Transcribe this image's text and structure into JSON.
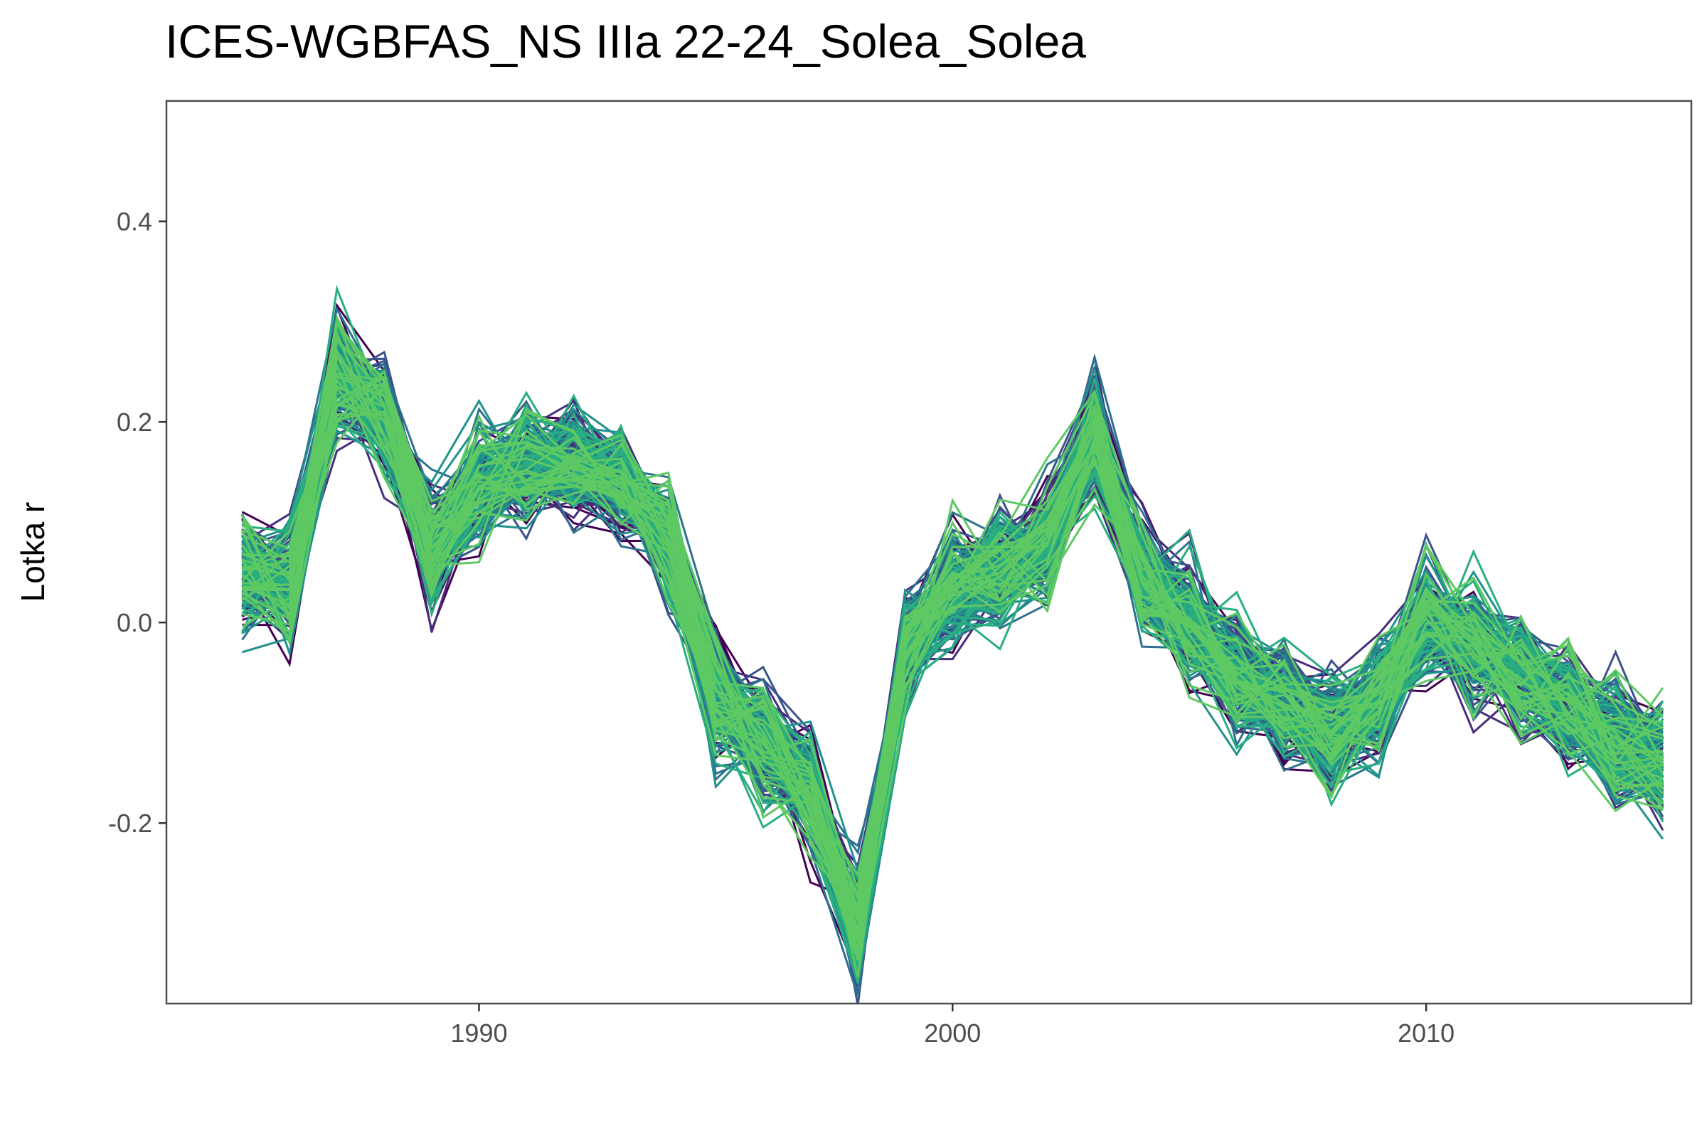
{
  "chart_data": {
    "type": "line",
    "title": "ICES-WGBFAS_NS IIIa 22-24_Solea_Solea",
    "xlabel": "",
    "ylabel": "Lotka r",
    "xlim": [
      1983.4,
      2015.6
    ],
    "ylim": [
      -0.38,
      0.52
    ],
    "x_ticks": [
      1990,
      2000,
      2010
    ],
    "x_tick_labels": [
      "1990",
      "2000",
      "2010"
    ],
    "y_ticks": [
      -0.2,
      0.0,
      0.2,
      0.4
    ],
    "y_tick_labels": [
      "-0.2",
      "0.0",
      "0.2",
      "0.4"
    ],
    "grid": false,
    "legend": "none",
    "palette": [
      "#440154",
      "#472d7b",
      "#3b528b",
      "#2c728e",
      "#21918c",
      "#28ae80",
      "#5ec962"
    ],
    "x": [
      1985,
      1986,
      1987,
      1988,
      1989,
      1990,
      1991,
      1992,
      1993,
      1994,
      1995,
      1996,
      1997,
      1998,
      1999,
      2000,
      2001,
      2002,
      2003,
      2004,
      2005,
      2006,
      2007,
      2008,
      2009,
      2010,
      2011,
      2012,
      2013,
      2014,
      2015
    ],
    "central_trajectory": [
      0.05,
      0.04,
      0.25,
      0.21,
      0.07,
      0.14,
      0.16,
      0.16,
      0.14,
      0.08,
      -0.07,
      -0.12,
      -0.17,
      -0.31,
      -0.02,
      0.03,
      0.05,
      0.08,
      0.19,
      0.05,
      0.0,
      -0.05,
      -0.08,
      -0.11,
      -0.08,
      0.0,
      -0.02,
      -0.05,
      -0.08,
      -0.12,
      -0.14
    ],
    "spread": 0.055,
    "n_series": 200
  }
}
